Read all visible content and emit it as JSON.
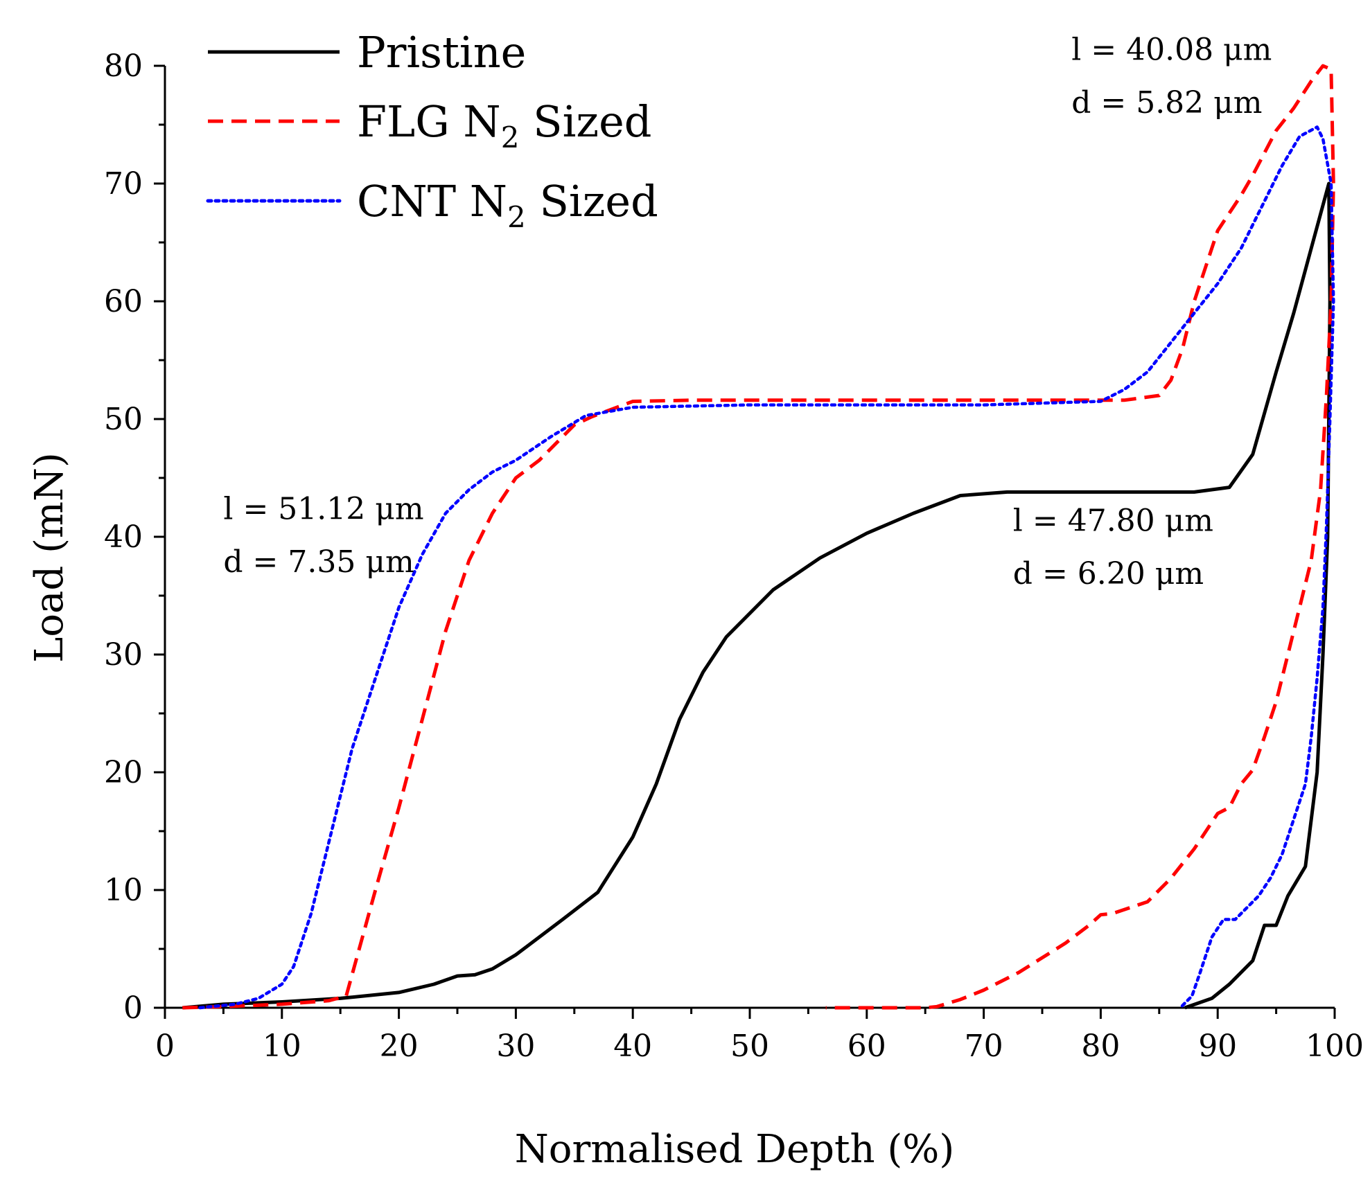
{
  "chart_data": {
    "type": "line",
    "title": "",
    "xlabel": "Normalised Depth (%)",
    "ylabel": "Load (mN)",
    "xlim": [
      0,
      100
    ],
    "ylim": [
      0,
      80
    ],
    "xticks": [
      0,
      10,
      20,
      30,
      40,
      50,
      60,
      70,
      80,
      90,
      100
    ],
    "yticks": [
      0,
      10,
      20,
      30,
      40,
      50,
      60,
      70,
      80
    ],
    "legend_position": "top-left",
    "series": [
      {
        "name": "Pristine",
        "color": "#000000",
        "style": "solid",
        "x": [
          1.5,
          5,
          10,
          15,
          20,
          23,
          25,
          26.5,
          28,
          30,
          34,
          37,
          40,
          42,
          44,
          46,
          48,
          52,
          56,
          60,
          64,
          68,
          72,
          80,
          88,
          91,
          93,
          95,
          96.5,
          98,
          99.5,
          99.6,
          99.4,
          99,
          98.5,
          97.5,
          96,
          95,
          94,
          93,
          91,
          89.5,
          87.2
        ],
        "y": [
          0,
          0.3,
          0.5,
          0.8,
          1.3,
          2,
          2.7,
          2.8,
          3.3,
          4.5,
          7.5,
          9.8,
          14.5,
          19,
          24.5,
          28.5,
          31.5,
          35.5,
          38.2,
          40.3,
          42,
          43.5,
          43.8,
          43.8,
          43.8,
          44.2,
          47,
          54,
          59,
          64.5,
          70,
          60,
          40,
          30,
          20,
          12,
          9.5,
          7,
          7,
          4,
          2,
          0.8,
          0
        ]
      },
      {
        "name": "FLG N₂ Sized",
        "color": "#ff0000",
        "style": "dashed",
        "x": [
          1.5,
          5,
          10,
          14,
          15.5,
          18,
          20,
          22,
          24,
          26,
          28,
          30,
          32,
          35,
          36.5,
          40,
          45,
          55,
          65,
          75,
          82,
          85,
          86,
          87,
          88,
          89,
          90,
          92,
          93,
          95,
          96.5,
          98,
          99,
          99.7,
          99.9,
          99.7,
          99.3,
          98.8,
          98,
          97,
          96,
          95,
          94,
          93,
          92,
          91,
          90,
          88,
          86,
          84,
          81,
          80,
          79,
          77,
          73,
          70,
          68,
          66,
          65,
          56.5
        ],
        "y": [
          0,
          0.1,
          0.3,
          0.6,
          1,
          10,
          17,
          24.5,
          32,
          38,
          42,
          45,
          46.5,
          49.5,
          50.2,
          51.5,
          51.6,
          51.6,
          51.6,
          51.6,
          51.6,
          52,
          53.3,
          56,
          60,
          63,
          66,
          69,
          70.7,
          74.5,
          76.4,
          78.7,
          80,
          79.7,
          70,
          60,
          52,
          44,
          38,
          34,
          30,
          26,
          23,
          20.2,
          19,
          17,
          16.5,
          13.5,
          11,
          9,
          8,
          7.9,
          7,
          5.5,
          3,
          1.5,
          0.7,
          0.1,
          0,
          0
        ]
      },
      {
        "name": "CNT N₂ Sized",
        "color": "#0000ff",
        "style": "dotted",
        "x": [
          3,
          6,
          8,
          10,
          11,
          12.5,
          14,
          16,
          18,
          20,
          22,
          24,
          26,
          28,
          30,
          33,
          36,
          40,
          50,
          60,
          70,
          80,
          82,
          84,
          86,
          88,
          90,
          92,
          94,
          95.5,
          97,
          98.5,
          99,
          99.7,
          99.9,
          99.6,
          99.3,
          99,
          98.5,
          98,
          97.5,
          96.5,
          95.5,
          94.5,
          93.5,
          92.5,
          91.5,
          90.5,
          89.5,
          88.5,
          87.8,
          86.8
        ],
        "y": [
          0,
          0.3,
          0.8,
          2,
          3.5,
          8,
          14,
          22,
          28,
          34,
          38.5,
          42,
          44,
          45.5,
          46.5,
          48.5,
          50.3,
          51,
          51.2,
          51.2,
          51.2,
          51.5,
          52.5,
          54,
          56.5,
          59,
          61.5,
          64.5,
          68.5,
          71.5,
          74,
          74.8,
          73.8,
          70,
          60,
          50,
          41,
          34,
          28,
          23,
          19,
          16,
          13,
          11,
          9.5,
          8.5,
          7.5,
          7.5,
          6,
          3,
          1,
          0
        ]
      }
    ],
    "annotations": [
      {
        "text": "l = 51.12 μm",
        "x": 5,
        "y": 41.5
      },
      {
        "text": "d = 7.35 μm",
        "x": 5,
        "y": 37
      },
      {
        "text": "l = 47.80 μm",
        "x": 72.5,
        "y": 40.5
      },
      {
        "text": "d = 6.20 μm",
        "x": 72.5,
        "y": 36
      },
      {
        "text": "l = 40.08 μm",
        "x": 77.5,
        "y": 80.5
      },
      {
        "text": "d = 5.82 μm",
        "x": 77.5,
        "y": 76
      }
    ]
  },
  "legend": [
    {
      "prefix": "Pristine",
      "sub": "",
      "suffix": ""
    },
    {
      "prefix": "FLG N",
      "sub": "2",
      "suffix": " Sized"
    },
    {
      "prefix": "CNT N",
      "sub": "2",
      "suffix": " Sized"
    }
  ]
}
